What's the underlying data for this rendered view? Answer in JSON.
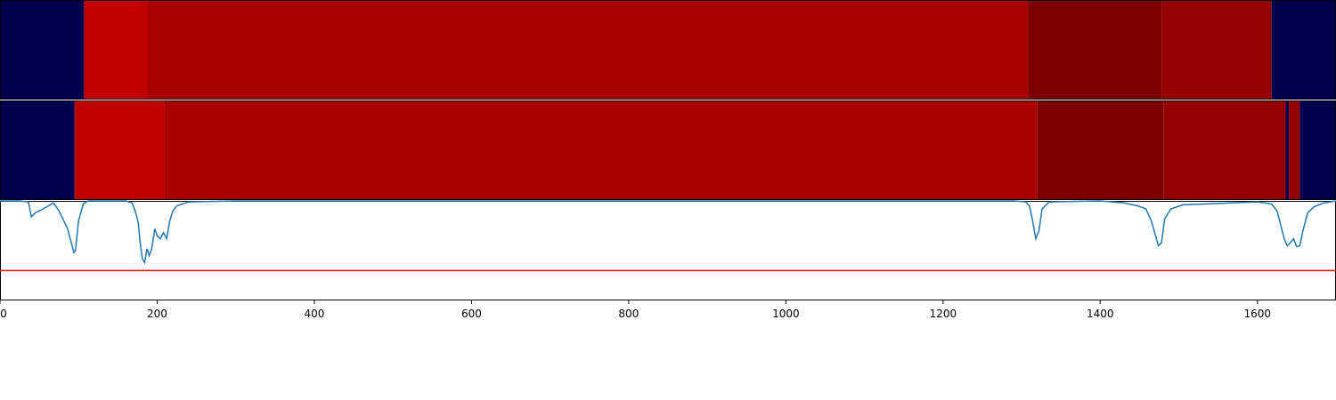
{
  "chart_data": {
    "type": "heatmap",
    "xlim": [
      0,
      1700
    ],
    "x_ticks": [
      0,
      200,
      400,
      600,
      800,
      1000,
      1200,
      1400,
      1600
    ],
    "x_tick_labels": [
      "0",
      "200",
      "400",
      "600",
      "800",
      "1000",
      "1200",
      "1400",
      "1600"
    ],
    "tracks": [
      {
        "segments": [
          {
            "start": 0,
            "end": 107,
            "color": "#000050"
          },
          {
            "start": 107,
            "end": 187,
            "color": "#c10000"
          },
          {
            "start": 187,
            "end": 1308,
            "color": "#aa0000"
          },
          {
            "start": 1308,
            "end": 1478,
            "color": "#7c0000"
          },
          {
            "start": 1478,
            "end": 1618,
            "color": "#950000"
          },
          {
            "start": 1618,
            "end": 1700,
            "color": "#000050"
          }
        ]
      },
      {
        "segments": [
          {
            "start": 0,
            "end": 95,
            "color": "#000050"
          },
          {
            "start": 95,
            "end": 209,
            "color": "#c10000"
          },
          {
            "start": 209,
            "end": 1320,
            "color": "#aa0000"
          },
          {
            "start": 1320,
            "end": 1481,
            "color": "#7c0000"
          },
          {
            "start": 1481,
            "end": 1636,
            "color": "#950000"
          },
          {
            "start": 1636,
            "end": 1640,
            "color": "#000050"
          },
          {
            "start": 1640,
            "end": 1654,
            "color": "#950000"
          },
          {
            "start": 1654,
            "end": 1700,
            "color": "#000050"
          }
        ]
      }
    ],
    "line": {
      "ylim": [
        0,
        1
      ],
      "color": "#1f77b4",
      "threshold": 0.3,
      "threshold_color": "#ff0000",
      "points": [
        [
          0,
          1.0
        ],
        [
          25,
          1.0
        ],
        [
          36,
          0.99
        ],
        [
          40,
          0.84
        ],
        [
          45,
          0.88
        ],
        [
          55,
          0.92
        ],
        [
          68,
          0.98
        ],
        [
          75,
          0.9
        ],
        [
          80,
          0.82
        ],
        [
          86,
          0.72
        ],
        [
          90,
          0.6
        ],
        [
          94,
          0.48
        ],
        [
          96,
          0.5
        ],
        [
          100,
          0.8
        ],
        [
          106,
          0.97
        ],
        [
          112,
          1.0
        ],
        [
          160,
          1.0
        ],
        [
          168,
          0.98
        ],
        [
          172,
          0.9
        ],
        [
          176,
          0.78
        ],
        [
          178,
          0.6
        ],
        [
          181,
          0.42
        ],
        [
          184,
          0.38
        ],
        [
          187,
          0.52
        ],
        [
          190,
          0.45
        ],
        [
          193,
          0.52
        ],
        [
          197,
          0.72
        ],
        [
          200,
          0.65
        ],
        [
          204,
          0.62
        ],
        [
          208,
          0.68
        ],
        [
          212,
          0.62
        ],
        [
          216,
          0.8
        ],
        [
          220,
          0.9
        ],
        [
          225,
          0.95
        ],
        [
          240,
          0.99
        ],
        [
          300,
          1.0
        ],
        [
          1290,
          1.0
        ],
        [
          1305,
          0.99
        ],
        [
          1310,
          0.95
        ],
        [
          1314,
          0.8
        ],
        [
          1318,
          0.62
        ],
        [
          1322,
          0.7
        ],
        [
          1326,
          0.92
        ],
        [
          1335,
          0.99
        ],
        [
          1400,
          1.0
        ],
        [
          1430,
          0.98
        ],
        [
          1448,
          0.95
        ],
        [
          1458,
          0.92
        ],
        [
          1465,
          0.8
        ],
        [
          1470,
          0.66
        ],
        [
          1474,
          0.55
        ],
        [
          1478,
          0.58
        ],
        [
          1482,
          0.82
        ],
        [
          1490,
          0.92
        ],
        [
          1505,
          0.96
        ],
        [
          1600,
          0.99
        ],
        [
          1618,
          0.97
        ],
        [
          1625,
          0.9
        ],
        [
          1630,
          0.75
        ],
        [
          1634,
          0.62
        ],
        [
          1638,
          0.55
        ],
        [
          1642,
          0.58
        ],
        [
          1646,
          0.62
        ],
        [
          1650,
          0.54
        ],
        [
          1654,
          0.55
        ],
        [
          1658,
          0.7
        ],
        [
          1664,
          0.88
        ],
        [
          1672,
          0.94
        ],
        [
          1685,
          0.98
        ],
        [
          1700,
          1.0
        ]
      ]
    }
  }
}
